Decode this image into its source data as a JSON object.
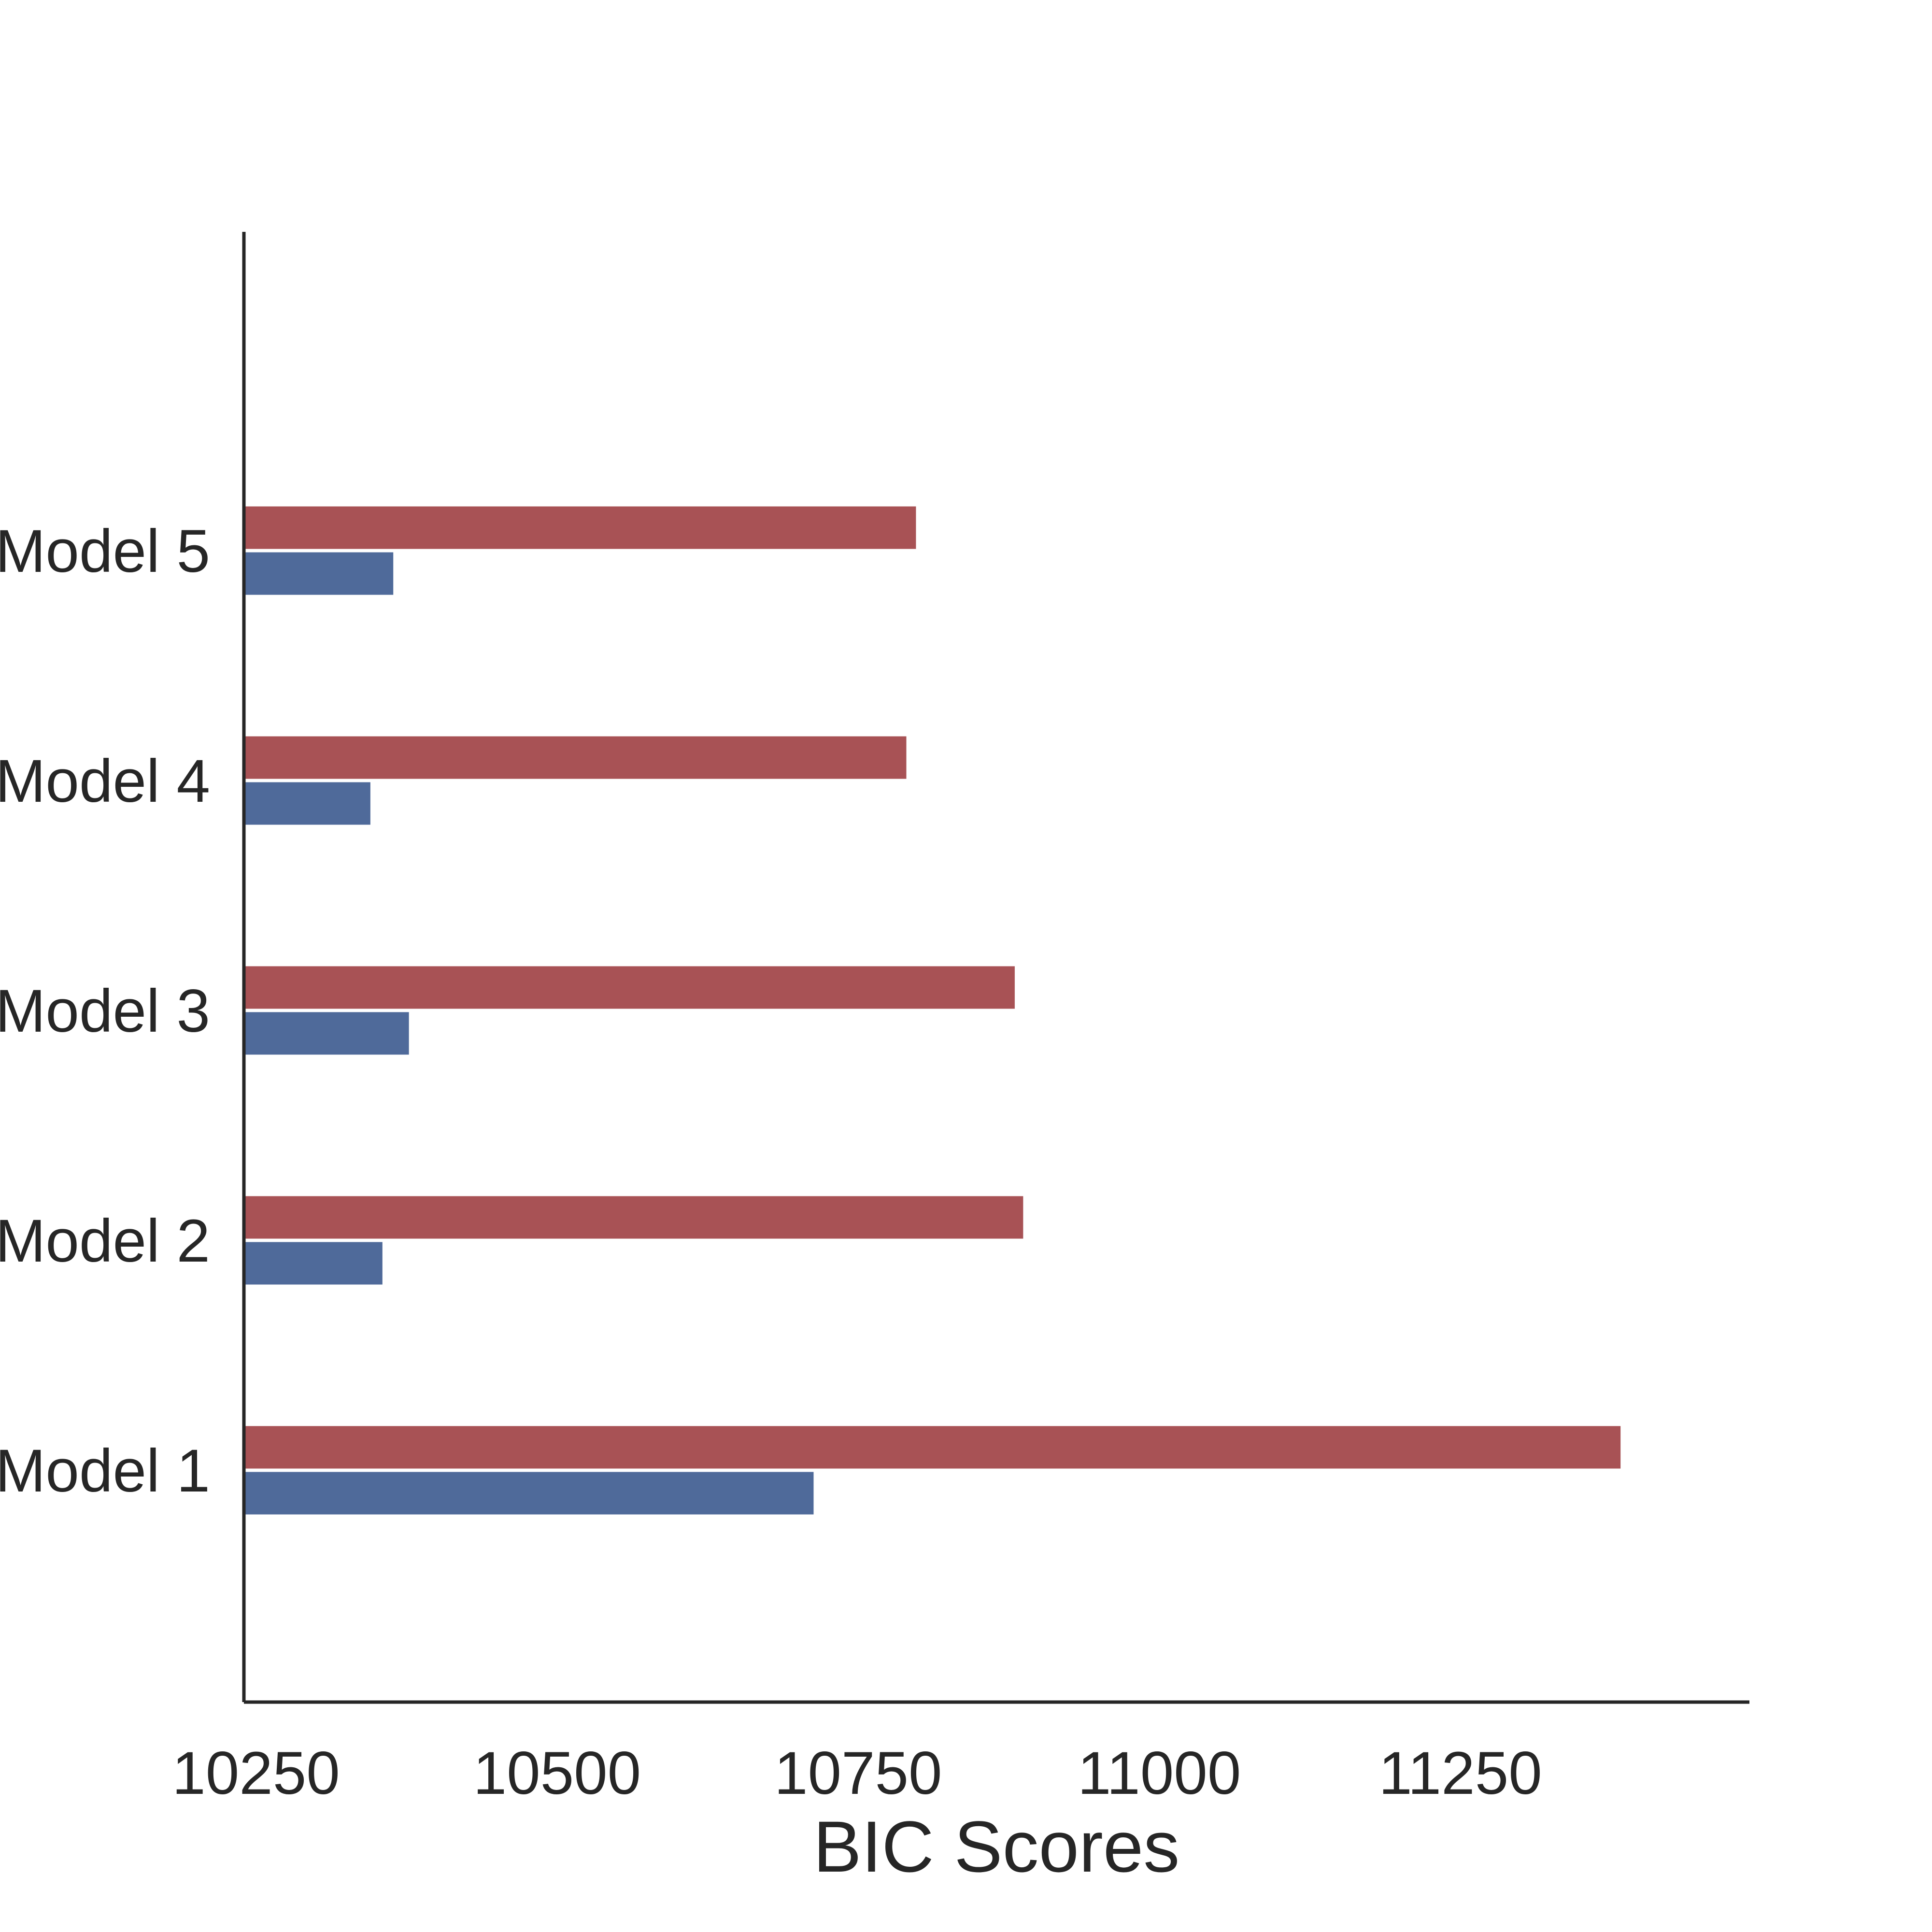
{
  "chart_data": {
    "type": "bar",
    "orientation": "horizontal",
    "title": "",
    "xlabel": "BIC Scores",
    "ylabel": "",
    "categories": [
      "Model 1",
      "Model 2",
      "Model 3",
      "Model 4",
      "Model 5"
    ],
    "series": [
      {
        "color": "#4f6a9a",
        "values": [
          10723,
          10365,
          10387,
          10355,
          10374
        ]
      },
      {
        "color": "#a85255",
        "values": [
          11393,
          10897,
          10890,
          10800,
          10808
        ]
      }
    ],
    "xlim": [
      10250,
      11500
    ],
    "xticks": [
      "10250",
      "10500",
      "10750",
      "11000",
      "11250"
    ],
    "grid": false,
    "legend": "none"
  }
}
